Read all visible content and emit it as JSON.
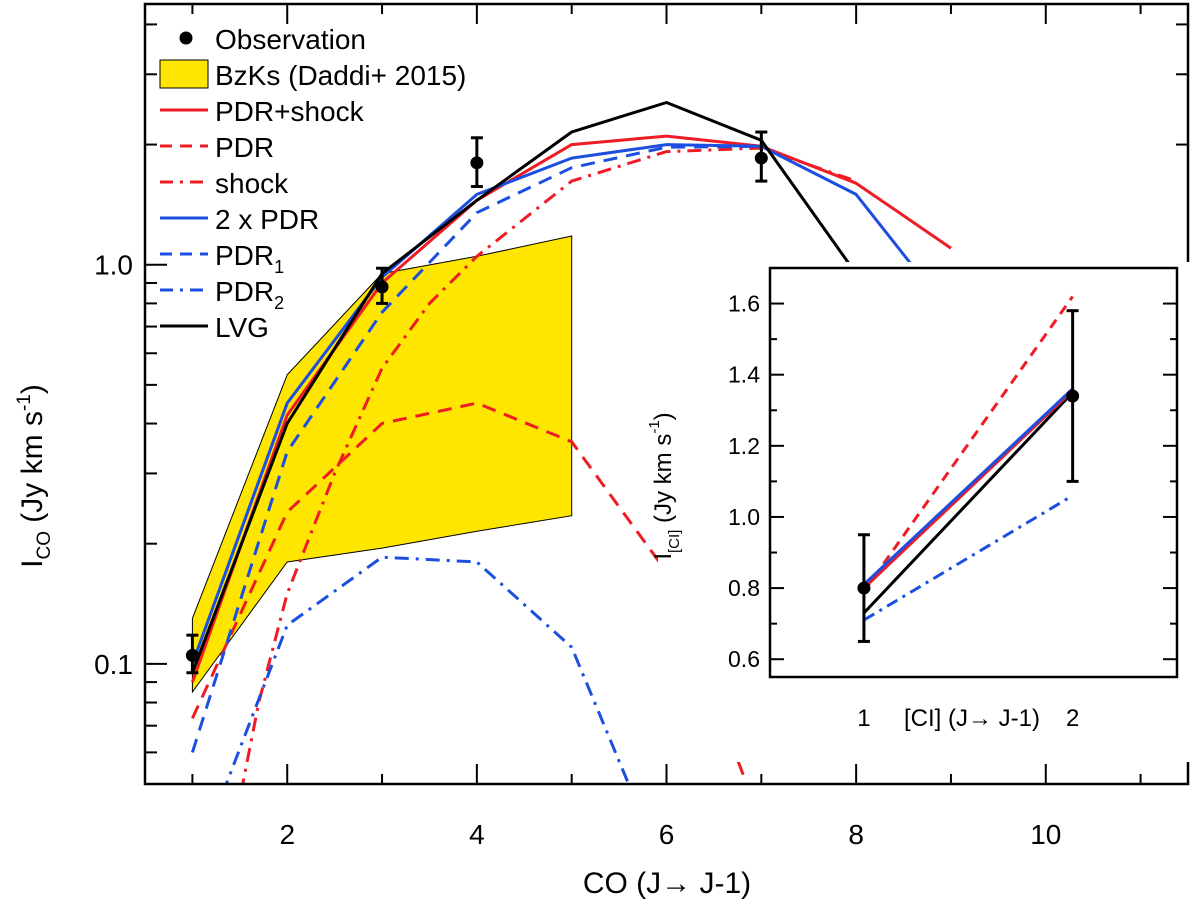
{
  "chart_data": [
    {
      "type": "line",
      "xlabel": "CO (J→ J-1)",
      "ylabel": "I_CO (Jy km s^-1)",
      "ylabel_parts": {
        "main": "I",
        "sub": "CO",
        "unit": " (Jy km s",
        "sup": "-1",
        "close": ")"
      },
      "xlim": [
        0.5,
        11.5
      ],
      "ylim": [
        0.05,
        4.5
      ],
      "yscale": "log",
      "x_ticks": [
        2,
        4,
        6,
        8,
        10
      ],
      "x_tick_labels": [
        "2",
        "4",
        "6",
        "8",
        "10"
      ],
      "y_ticks": [
        0.1,
        1.0
      ],
      "y_tick_labels": [
        "0.1",
        "1.0"
      ],
      "legend_position": "top-left",
      "legend": [
        {
          "label": "Observation",
          "style": "dot",
          "color": "#000000"
        },
        {
          "label": "BzKs (Daddi+ 2015)",
          "style": "box",
          "color": "#FFE600"
        },
        {
          "label": "PDR+shock",
          "style": "solid",
          "color": "#EE1C25"
        },
        {
          "label": "PDR",
          "style": "dash",
          "color": "#EE1C25"
        },
        {
          "label": "shock",
          "style": "dashdot",
          "color": "#EE1C25"
        },
        {
          "label": "2 x PDR",
          "style": "solid",
          "color": "#1C4FE0"
        },
        {
          "label": "PDR",
          "sub": "1",
          "style": "dash",
          "color": "#1C4FE0"
        },
        {
          "label": "PDR",
          "sub": "2",
          "style": "dashdot",
          "color": "#1C4FE0"
        },
        {
          "label": "LVG",
          "style": "solid",
          "color": "#000000"
        }
      ],
      "band": {
        "name": "BzKs (Daddi+ 2015)",
        "x": [
          1,
          2,
          3,
          4,
          5
        ],
        "upper": [
          0.13,
          0.53,
          0.95,
          1.05,
          1.18
        ],
        "lower": [
          0.085,
          0.18,
          0.195,
          0.215,
          0.235
        ],
        "color": "#FFE600"
      },
      "observations": [
        {
          "x": 1,
          "y": 0.105,
          "err_low": 0.095,
          "err_high": 0.118
        },
        {
          "x": 3,
          "y": 0.88,
          "err_low": 0.8,
          "err_high": 0.98
        },
        {
          "x": 4,
          "y": 1.8,
          "err_low": 1.57,
          "err_high": 2.08
        },
        {
          "x": 7,
          "y": 1.85,
          "err_low": 1.62,
          "err_high": 2.15
        }
      ],
      "series": [
        {
          "name": "PDR+shock",
          "color": "#EE1C25",
          "style": "solid",
          "x": [
            1,
            2,
            3,
            4,
            5,
            6,
            7,
            8,
            9
          ],
          "y": [
            0.09,
            0.42,
            0.9,
            1.45,
            2.0,
            2.1,
            1.98,
            1.6,
            1.1
          ]
        },
        {
          "name": "PDR",
          "color": "#EE1C25",
          "style": "dash",
          "x": [
            1,
            2,
            3,
            4,
            5,
            6,
            7
          ],
          "y": [
            0.073,
            0.24,
            0.4,
            0.45,
            0.36,
            0.17,
            0.04
          ]
        },
        {
          "name": "shock",
          "color": "#EE1C25",
          "style": "dashdot",
          "x": [
            1.45,
            1.7,
            2,
            2.5,
            3,
            3.5,
            4,
            5,
            6,
            7,
            8
          ],
          "y": [
            0.04,
            0.08,
            0.15,
            0.3,
            0.55,
            0.8,
            1.05,
            1.62,
            1.92,
            1.96,
            1.62
          ]
        },
        {
          "name": "2 x PDR",
          "color": "#1C4FE0",
          "style": "solid",
          "x": [
            1,
            2,
            3,
            4,
            5,
            6,
            7,
            8,
            9
          ],
          "y": [
            0.1,
            0.45,
            0.93,
            1.5,
            1.85,
            2.0,
            1.98,
            1.5,
            0.75
          ]
        },
        {
          "name": "PDR1",
          "color": "#1C4FE0",
          "style": "dash",
          "x": [
            1,
            2,
            3,
            4,
            5,
            6,
            7
          ],
          "y": [
            0.06,
            0.34,
            0.76,
            1.35,
            1.75,
            1.97,
            1.98
          ]
        },
        {
          "name": "PDR2",
          "color": "#1C4FE0",
          "style": "dashdot",
          "x": [
            1.2,
            2,
            3,
            4,
            5,
            5.6
          ],
          "y": [
            0.04,
            0.125,
            0.185,
            0.18,
            0.11,
            0.05
          ]
        },
        {
          "name": "LVG",
          "color": "#000000",
          "style": "solid",
          "x": [
            1,
            2,
            3,
            4,
            5,
            6,
            7,
            8,
            9
          ],
          "y": [
            0.095,
            0.4,
            0.95,
            1.45,
            2.15,
            2.55,
            2.05,
            0.95,
            0.48
          ]
        }
      ]
    },
    {
      "type": "line",
      "inset": true,
      "xlabel": "[CI] (J→ J-1)",
      "ylabel": "I_[CI] (Jy km s^-1)",
      "ylabel_parts": {
        "main": "I",
        "sub": "[CI]",
        "unit": " (Jy km s",
        "sup": "-1",
        "close": ")"
      },
      "xlim": [
        0.55,
        2.5
      ],
      "ylim": [
        0.55,
        1.7
      ],
      "yscale": "linear",
      "x_tick_labels": [
        "1",
        "2"
      ],
      "y_ticks": [
        0.6,
        0.8,
        1.0,
        1.2,
        1.4,
        1.6
      ],
      "y_tick_labels": [
        "0.6",
        "0.8",
        "1.0",
        "1.2",
        "1.4",
        "1.6"
      ],
      "observations": [
        {
          "x": 1,
          "y": 0.8,
          "err_low": 0.65,
          "err_high": 0.95
        },
        {
          "x": 2,
          "y": 1.34,
          "err_low": 1.1,
          "err_high": 1.58
        }
      ],
      "series": [
        {
          "name": "PDR",
          "color": "#EE1C25",
          "style": "dash",
          "x": [
            1,
            2
          ],
          "y": [
            0.79,
            1.62
          ]
        },
        {
          "name": "PDR2",
          "color": "#1C4FE0",
          "style": "dashdot",
          "x": [
            1,
            2
          ],
          "y": [
            0.71,
            1.06
          ]
        },
        {
          "name": "LVG",
          "color": "#000000",
          "style": "solid",
          "x": [
            1,
            2
          ],
          "y": [
            0.73,
            1.35
          ]
        },
        {
          "name": "PDR+shock",
          "color": "#EE1C25",
          "style": "solid",
          "x": [
            1,
            2
          ],
          "y": [
            0.8,
            1.355
          ]
        },
        {
          "name": "2 x PDR",
          "color": "#1C4FE0",
          "style": "solid",
          "x": [
            1,
            2
          ],
          "y": [
            0.81,
            1.36
          ]
        }
      ]
    }
  ]
}
